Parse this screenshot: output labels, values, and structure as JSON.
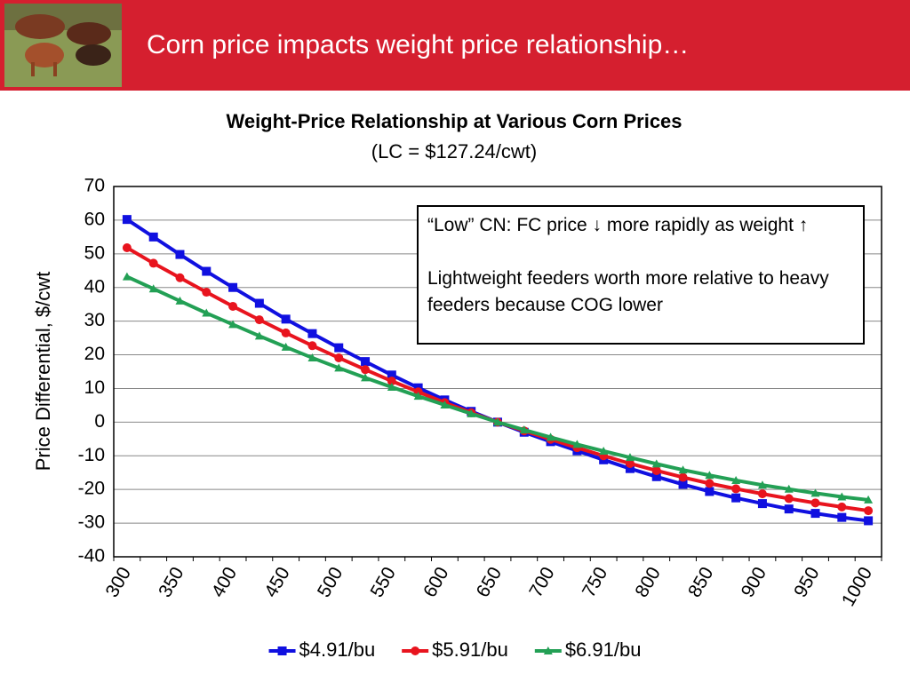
{
  "header": {
    "title": "Corn price impacts weight price relationship…"
  },
  "chart_data": {
    "type": "line",
    "title": "Weight-Price Relationship at Various Corn Prices",
    "subtitle": "(LC = $127.24/cwt)",
    "y_label": "Price Differential, $/cwt",
    "categories": [
      "300",
      null,
      "350",
      null,
      "400",
      null,
      "450",
      null,
      "500",
      null,
      "550",
      null,
      "600",
      null,
      "650",
      null,
      "700",
      null,
      "750",
      null,
      "800",
      null,
      "850",
      null,
      "900",
      null,
      "950",
      null,
      "1000"
    ],
    "series": [
      {
        "name": "$4.91/bu",
        "color": "#1010e0",
        "marker": "square",
        "values": [
          60.2,
          55,
          49.8,
          44.8,
          40,
          35.3,
          30.6,
          26.3,
          22.1,
          18,
          14,
          10.2,
          6.6,
          3.2,
          0,
          -3.0,
          -5.8,
          -8.5,
          -11.2,
          -13.8,
          -16.2,
          -18.5,
          -20.6,
          -22.5,
          -24.2,
          -25.8,
          -27.1,
          -28.3,
          -29.3
        ]
      },
      {
        "name": "$5.91/bu",
        "color": "#e8141e",
        "marker": "circle",
        "values": [
          51.8,
          47.2,
          42.9,
          38.6,
          34.4,
          30.4,
          26.5,
          22.7,
          19.1,
          15.6,
          12.2,
          9.0,
          5.8,
          2.8,
          0,
          -2.6,
          -5.1,
          -7.6,
          -10.0,
          -12.3,
          -14.4,
          -16.4,
          -18.2,
          -19.8,
          -21.3,
          -22.7,
          -24.0,
          -25.2,
          -26.3
        ]
      },
      {
        "name": "$6.91/bu",
        "color": "#23a055",
        "marker": "triangle",
        "values": [
          43.2,
          39.6,
          36,
          32.4,
          29,
          25.6,
          22.3,
          19.1,
          16.1,
          13.2,
          10.4,
          7.7,
          5.1,
          2.5,
          0,
          -2.3,
          -4.5,
          -6.6,
          -8.6,
          -10.5,
          -12.4,
          -14.2,
          -15.8,
          -17.3,
          -18.7,
          -19.9,
          -21.1,
          -22.2,
          -23.1
        ]
      }
    ],
    "ylim": [
      -40,
      70
    ],
    "yticks": [
      -40,
      -30,
      -20,
      -10,
      0,
      10,
      20,
      30,
      40,
      50,
      60,
      70
    ],
    "grid": true,
    "legend": "bottom",
    "annotation": {
      "lines": [
        "“Low” CN: FC price ↓ more rapidly as weight ↑",
        "Lightweight feeders worth more relative to heavy feeders because COG lower"
      ]
    }
  }
}
